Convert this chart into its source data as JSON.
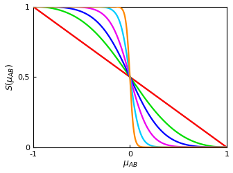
{
  "title": "",
  "xlabel": "$\\mu_{AB}$",
  "ylabel": "$S(\\mu_{AB})$",
  "xlim": [
    -1,
    1
  ],
  "ylim": [
    0,
    1
  ],
  "xticks": [
    -1,
    0,
    1
  ],
  "yticks": [
    0,
    0.5,
    1
  ],
  "ytick_labels": [
    "0",
    "0,5",
    "1"
  ],
  "xtick_labels": [
    "-1",
    "0",
    "1"
  ],
  "gray_line": {
    "color": "#aaaaaa",
    "lw": 1.5
  },
  "sigmoid_orders": [
    1,
    2,
    3,
    5,
    10,
    25
  ],
  "sigmoid_colors": [
    "#ff0000",
    "#00dd00",
    "#0000ff",
    "#ee00ee",
    "#00ccff",
    "#ff8800"
  ],
  "background": "#ffffff",
  "linewidth": 1.6
}
